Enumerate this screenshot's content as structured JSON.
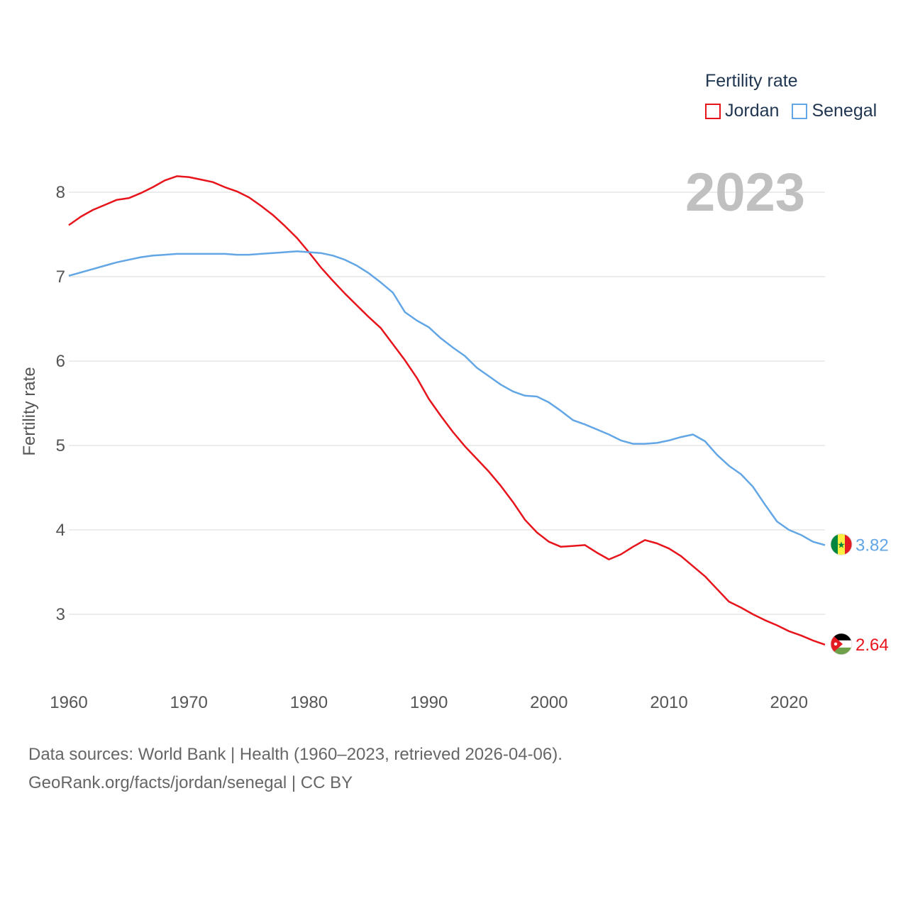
{
  "chart_data": {
    "type": "line",
    "title": "Fertility rate",
    "xlabel": "",
    "ylabel": "Fertility rate",
    "year_stamp": "2023",
    "xlim": [
      1960,
      2023
    ],
    "ylim": [
      2.35,
      8.5
    ],
    "x_ticks": [
      1960,
      1970,
      1980,
      1990,
      2000,
      2010,
      2020
    ],
    "y_ticks": [
      3,
      4,
      5,
      6,
      7,
      8
    ],
    "grid": true,
    "legend_position": "top-right",
    "x": [
      1960,
      1961,
      1962,
      1963,
      1964,
      1965,
      1966,
      1967,
      1968,
      1969,
      1970,
      1971,
      1972,
      1973,
      1974,
      1975,
      1976,
      1977,
      1978,
      1979,
      1980,
      1981,
      1982,
      1983,
      1984,
      1985,
      1986,
      1987,
      1988,
      1989,
      1990,
      1991,
      1992,
      1993,
      1994,
      1995,
      1996,
      1997,
      1998,
      1999,
      2000,
      2001,
      2002,
      2003,
      2004,
      2005,
      2006,
      2007,
      2008,
      2009,
      2010,
      2011,
      2012,
      2013,
      2014,
      2015,
      2016,
      2017,
      2018,
      2019,
      2020,
      2021,
      2022,
      2023
    ],
    "series": [
      {
        "name": "Jordan",
        "color": "#e8141b",
        "end_label": "2.64",
        "flag": "jordan",
        "values": [
          7.61,
          7.71,
          7.79,
          7.85,
          7.91,
          7.93,
          7.99,
          8.06,
          8.14,
          8.19,
          8.18,
          8.15,
          8.12,
          8.06,
          8.01,
          7.94,
          7.84,
          7.73,
          7.6,
          7.46,
          7.29,
          7.11,
          6.95,
          6.8,
          6.66,
          6.52,
          6.39,
          6.2,
          6.01,
          5.8,
          5.55,
          5.35,
          5.16,
          4.99,
          4.84,
          4.69,
          4.52,
          4.33,
          4.12,
          3.97,
          3.86,
          3.8,
          3.81,
          3.82,
          3.73,
          3.65,
          3.71,
          3.8,
          3.88,
          3.84,
          3.78,
          3.69,
          3.57,
          3.45,
          3.3,
          3.15,
          3.08,
          3.0,
          2.93,
          2.87,
          2.8,
          2.75,
          2.69,
          2.64
        ]
      },
      {
        "name": "Senegal",
        "color": "#62a6e6",
        "end_label": "3.82",
        "flag": "senegal",
        "values": [
          7.01,
          7.05,
          7.09,
          7.13,
          7.17,
          7.2,
          7.23,
          7.25,
          7.26,
          7.27,
          7.27,
          7.27,
          7.27,
          7.27,
          7.26,
          7.26,
          7.27,
          7.28,
          7.29,
          7.3,
          7.29,
          7.28,
          7.25,
          7.2,
          7.13,
          7.04,
          6.93,
          6.81,
          6.58,
          6.48,
          6.4,
          6.27,
          6.16,
          6.06,
          5.92,
          5.82,
          5.72,
          5.64,
          5.59,
          5.58,
          5.51,
          5.41,
          5.3,
          5.25,
          5.19,
          5.13,
          5.06,
          5.02,
          5.02,
          5.03,
          5.06,
          5.1,
          5.13,
          5.05,
          4.89,
          4.76,
          4.66,
          4.51,
          4.3,
          4.1,
          4.0,
          3.94,
          3.86,
          3.82
        ]
      }
    ]
  },
  "footer": {
    "sources": "Data sources: World Bank | Health (1960–2023, retrieved 2026-04-06).",
    "link": "GeoRank.org/facts/jordan/senegal | CC BY"
  }
}
